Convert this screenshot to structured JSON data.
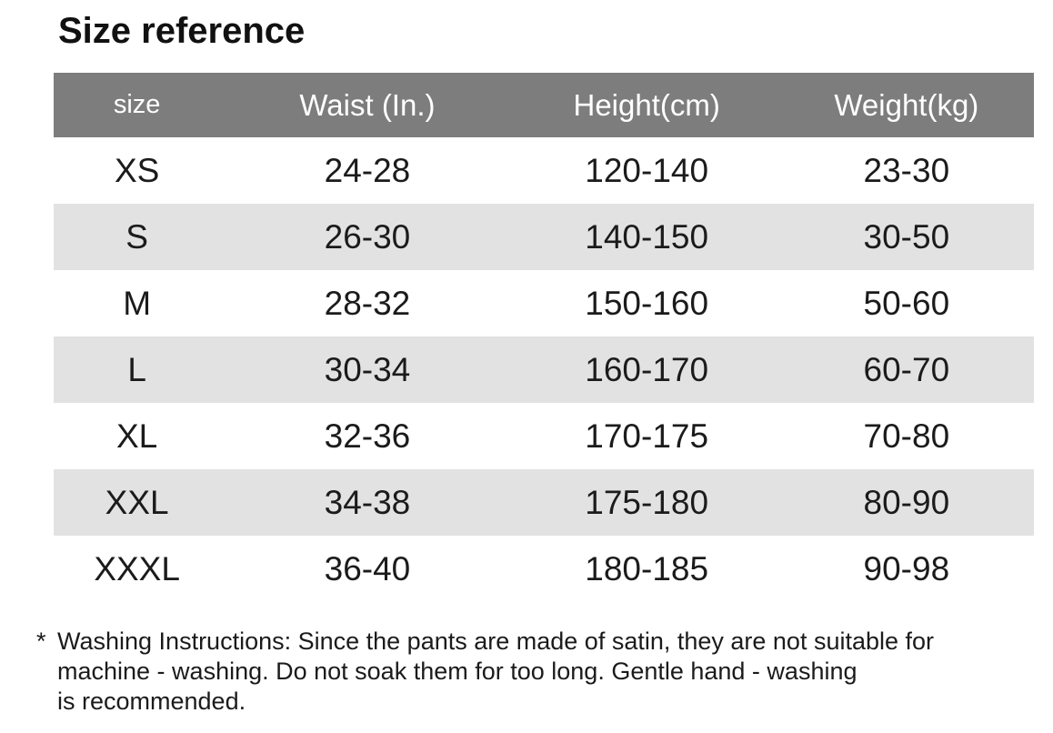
{
  "title": "Size reference",
  "table": {
    "headers": [
      "size",
      "Waist (In.)",
      "Height(cm)",
      "Weight(kg)"
    ],
    "rows": [
      [
        "XS",
        "24-28",
        "120-140",
        "23-30"
      ],
      [
        "S",
        "26-30",
        "140-150",
        "30-50"
      ],
      [
        "M",
        "28-32",
        "150-160",
        "50-60"
      ],
      [
        "L",
        "30-34",
        "160-170",
        "60-70"
      ],
      [
        "XL",
        "32-36",
        "170-175",
        "70-80"
      ],
      [
        "XXL",
        "34-38",
        "175-180",
        "80-90"
      ],
      [
        "XXXL",
        "36-40",
        "180-185",
        "90-98"
      ]
    ]
  },
  "footnote": {
    "marker": "*",
    "lines": [
      "Washing Instructions: Since the pants are made of satin, they are not suitable for",
      "machine - washing. Do not soak them for too long. Gentle hand - washing",
      "is recommended."
    ]
  },
  "colors": {
    "background": "#ffffff",
    "header_bg": "#7d7d7d",
    "header_text": "#ffffff",
    "stripe_bg": "#e2e2e2",
    "text": "#1b1b1b"
  }
}
